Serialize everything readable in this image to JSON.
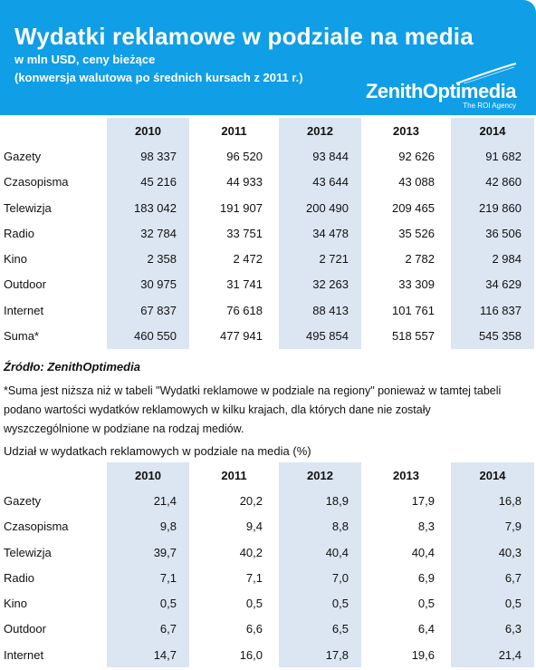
{
  "header": {
    "title": "Wydatki reklamowe w podziale na media",
    "subtitle1": "w mln USD, ceny bieżące",
    "subtitle2": "(konwersja walutowa po średnich kursach z 2011 r.)",
    "logo_brand": "ZenithOptimedia",
    "logo_tagline": "The ROI Agency"
  },
  "table1": {
    "years": [
      "2010",
      "2011",
      "2012",
      "2013",
      "2014"
    ],
    "rows": [
      {
        "label": "Gazety",
        "values": [
          "98 337",
          "96 520",
          "93 844",
          "92 626",
          "91 682"
        ]
      },
      {
        "label": "Czasopisma",
        "values": [
          "45 216",
          "44 933",
          "43 644",
          "43 088",
          "42 860"
        ]
      },
      {
        "label": "Telewizja",
        "values": [
          "183 042",
          "191 907",
          "200 490",
          "209 465",
          "219 860"
        ]
      },
      {
        "label": "Radio",
        "values": [
          "32 784",
          "33 751",
          "34 478",
          "35 526",
          "36 506"
        ]
      },
      {
        "label": "Kino",
        "values": [
          "2 358",
          "2 472",
          "2 721",
          "2 782",
          "2 984"
        ]
      },
      {
        "label": "Outdoor",
        "values": [
          "30 975",
          "31 741",
          "32 263",
          "33 309",
          "34 629"
        ]
      },
      {
        "label": "Internet",
        "values": [
          "67 837",
          "76 618",
          "88 413",
          "101 761",
          "116 837"
        ]
      },
      {
        "label": "Suma*",
        "values": [
          "460 550",
          "477 941",
          "495 854",
          "518 557",
          "545 358"
        ]
      }
    ]
  },
  "source": "Źródło: ZenithOptimedia",
  "note": {
    "line1": "*Suma jest niższa niż w tabeli \"Wydatki reklamowe w podziale na regiony\" ponieważ w tamtej tabeli",
    "line2": "podano wartości wydatków reklamowych w kilku krajach, dla których dane nie zostały",
    "line3": "wyszczególnione w podziane na rodzaj mediów."
  },
  "section2_title": "Udział w wydatkach reklamowych w podziale na media (%)",
  "table2": {
    "years": [
      "2010",
      "2011",
      "2012",
      "2013",
      "2014"
    ],
    "rows": [
      {
        "label": "Gazety",
        "values": [
          "21,4",
          "20,2",
          "18,9",
          "17,9",
          "16,8"
        ]
      },
      {
        "label": "Czasopisma",
        "values": [
          "9,8",
          "9,4",
          "8,8",
          "8,3",
          "7,9"
        ]
      },
      {
        "label": "Telewizja",
        "values": [
          "39,7",
          "40,2",
          "40,4",
          "40,4",
          "40,3"
        ]
      },
      {
        "label": "Radio",
        "values": [
          "7,1",
          "7,1",
          "7,0",
          "6,9",
          "6,7"
        ]
      },
      {
        "label": "Kino",
        "values": [
          "0,5",
          "0,5",
          "0,5",
          "0,5",
          "0,5"
        ]
      },
      {
        "label": "Outdoor",
        "values": [
          "6,7",
          "6,6",
          "6,5",
          "6,4",
          "6,3"
        ]
      },
      {
        "label": "Internet",
        "values": [
          "14,7",
          "16,0",
          "17,8",
          "19,6",
          "21,4"
        ]
      }
    ]
  }
}
